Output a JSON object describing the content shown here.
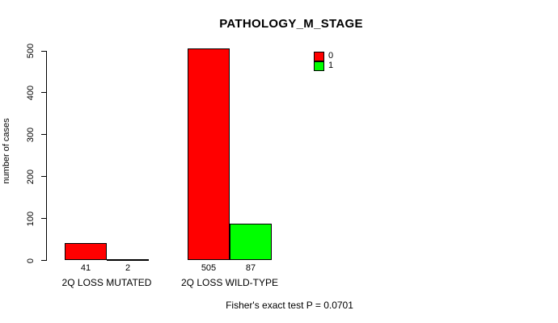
{
  "chart_data": {
    "type": "bar",
    "title": "PATHOLOGY_M_STAGE",
    "xlabel": "",
    "ylabel": "number of cases",
    "ylim": [
      0,
      500
    ],
    "yticks": [
      0,
      100,
      200,
      300,
      400,
      500
    ],
    "categories": [
      "2Q LOSS MUTATED",
      "2Q LOSS WILD-TYPE"
    ],
    "series": [
      {
        "name": "0",
        "color": "#ff0000",
        "values": [
          41,
          505
        ]
      },
      {
        "name": "1",
        "color": "#00ff00",
        "values": [
          2,
          87
        ]
      }
    ],
    "bar_value_labels": [
      [
        "41",
        "2"
      ],
      [
        "505",
        "87"
      ]
    ],
    "footer": "Fisher's exact test P = 0.0701",
    "legend_position": "top-right",
    "grid": "off",
    "background_color": "#ffffff",
    "text_color": "#000000"
  }
}
